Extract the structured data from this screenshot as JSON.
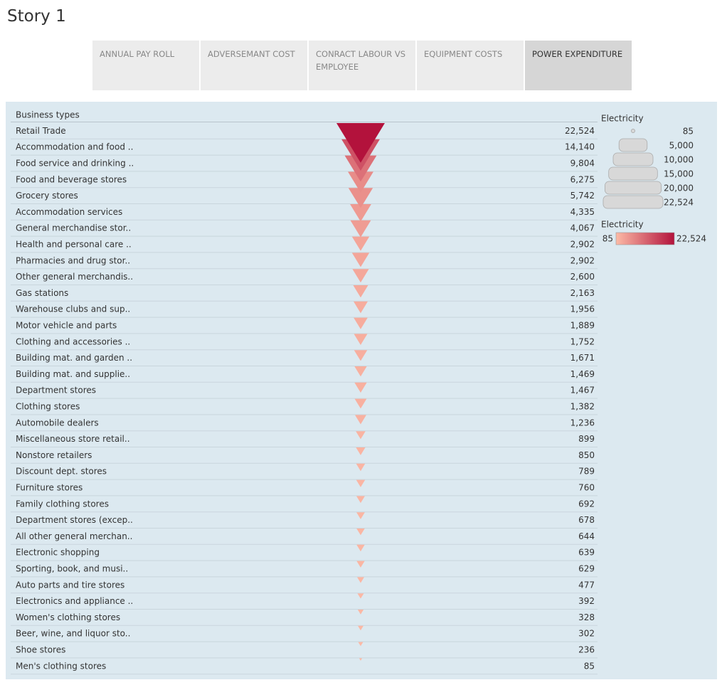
{
  "story": {
    "title": "Story 1",
    "tabs": [
      "ANNUAL PAY ROLL",
      "ADVERSEMANT COST",
      "CONRACT LABOUR VS EMPLOYEE",
      "EQUIPMENT COSTS",
      "POWER EXPENDITURE"
    ],
    "active_tab": 4
  },
  "chart_data": {
    "type": "triangle",
    "row_header": "Business types",
    "categories": [
      "Retail Trade",
      "Accommodation and food ..",
      "Food service and drinking ..",
      "Food and beverage stores",
      "Grocery stores",
      "Accommodation services",
      "General merchandise stor..",
      "Health and personal care ..",
      "Pharmacies and drug stor..",
      "Other general merchandis..",
      "Gas stations",
      "Warehouse clubs and sup..",
      "Motor vehicle and parts",
      "Clothing and accessories ..",
      "Building mat. and garden ..",
      "Building mat. and supplie..",
      "Department stores",
      "Clothing stores",
      "Automobile dealers",
      "Miscellaneous store retail..",
      "Nonstore retailers",
      "Discount dept. stores",
      "Furniture stores",
      "Family clothing stores",
      "Department stores (excep..",
      "All other general merchan..",
      "Electronic shopping",
      "Sporting, book, and musi..",
      "Auto parts and tire stores",
      "Electronics and appliance ..",
      "Women's clothing stores",
      "Beer, wine, and liquor sto..",
      "Shoe stores",
      "Men's clothing stores"
    ],
    "values": [
      22524,
      14140,
      9804,
      6275,
      5742,
      4335,
      4067,
      2902,
      2902,
      2600,
      2163,
      1956,
      1889,
      1752,
      1671,
      1469,
      1467,
      1382,
      1236,
      899,
      850,
      789,
      760,
      692,
      678,
      644,
      639,
      629,
      477,
      392,
      328,
      302,
      236,
      85
    ],
    "value_labels": [
      "22,524",
      "14,140",
      "9,804",
      "6,275",
      "5,742",
      "4,335",
      "4,067",
      "2,902",
      "2,902",
      "2,600",
      "2,163",
      "1,956",
      "1,889",
      "1,752",
      "1,671",
      "1,469",
      "1,467",
      "1,382",
      "1,236",
      "899",
      "850",
      "789",
      "760",
      "692",
      "678",
      "644",
      "639",
      "629",
      "477",
      "392",
      "328",
      "302",
      "236",
      "85"
    ],
    "size_legend": {
      "title": "Electricity",
      "values": [
        85,
        {
          "value": 5000,
          "label": "5,000"
        },
        {
          "value": 10000,
          "label": "10,000"
        },
        {
          "value": 15000,
          "label": "15,000"
        },
        {
          "value": 20000,
          "label": "20,000"
        },
        {
          "value": 22524,
          "label": "22,524"
        }
      ]
    },
    "color_legend": {
      "title": "Electricity",
      "range": [
        85,
        {
          "value": 22524,
          "label": "22,524"
        }
      ],
      "colors": [
        "#fcbaa6",
        "#b3123c"
      ]
    }
  }
}
